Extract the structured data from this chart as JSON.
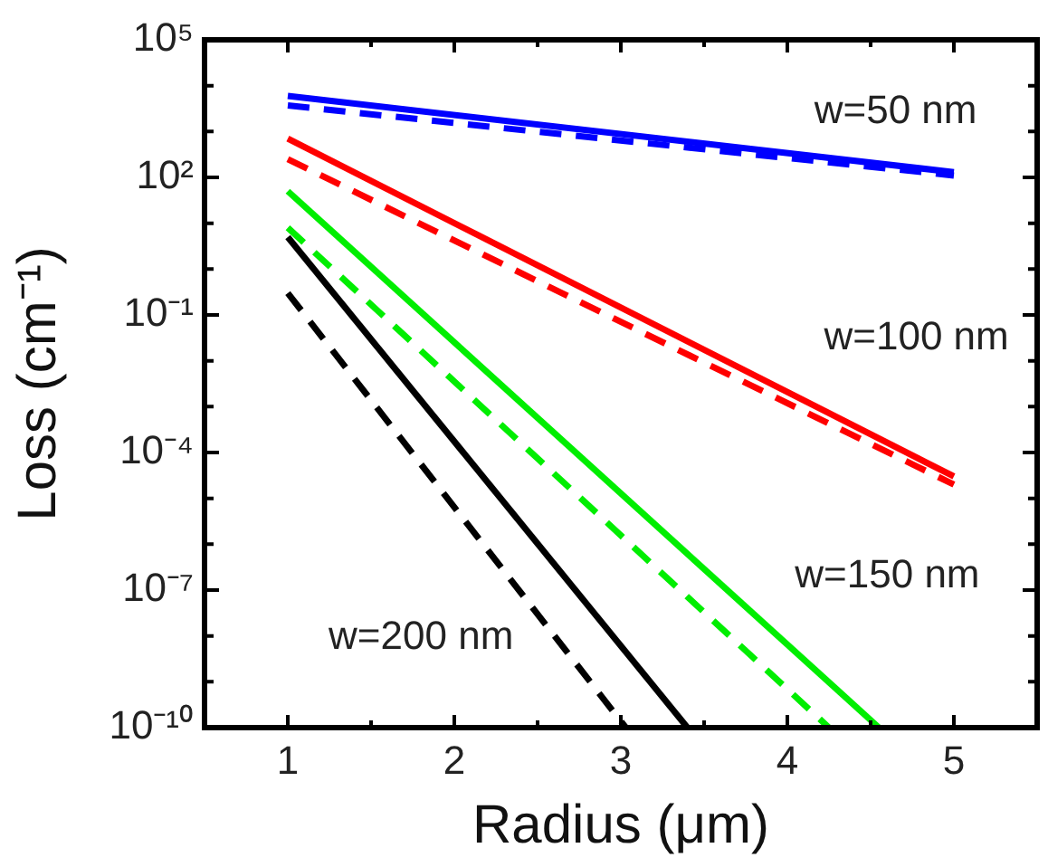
{
  "chart_data": {
    "type": "line",
    "xlabel": "Radius (μm)",
    "ylabel": "Loss (cm⁻¹)",
    "log": "y",
    "grid": false,
    "legend": false,
    "marker": "none",
    "xlim": [
      0.5,
      5.5
    ],
    "ylim": [
      1e-10,
      100000
    ],
    "xticks": [
      {
        "value": 0.5,
        "label": null
      },
      1,
      {
        "value": 1.5,
        "label": null
      },
      2,
      {
        "value": 2.5,
        "label": null
      },
      3,
      {
        "value": 3.5,
        "label": null
      },
      4,
      {
        "value": 4.5,
        "label": null
      },
      5,
      {
        "value": 5.5,
        "label": null
      }
    ],
    "yticks": [
      {
        "value": 1e-10,
        "label": "10⁻¹⁰"
      },
      {
        "value": 1e-09,
        "label": null
      },
      {
        "value": 1e-08,
        "label": null
      },
      {
        "value": 1e-07,
        "label": "10⁻⁷"
      },
      {
        "value": 1e-06,
        "label": null
      },
      {
        "value": 1e-05,
        "label": null
      },
      {
        "value": 0.0001,
        "label": "10⁻⁴"
      },
      {
        "value": 0.001,
        "label": null
      },
      {
        "value": 0.01,
        "label": null
      },
      {
        "value": 0.1,
        "label": "10⁻¹"
      },
      {
        "value": 1,
        "label": null
      },
      {
        "value": 10,
        "label": null
      },
      {
        "value": 100,
        "label": "10²"
      },
      {
        "value": 1000,
        "label": null
      },
      {
        "value": 10000,
        "label": null
      },
      {
        "value": 100000,
        "label": "10⁵"
      }
    ],
    "series": [
      {
        "color": "#0000ff",
        "line_style": "solid",
        "x": [
          1,
          5
        ],
        "values": [
          6000,
          130
        ]
      },
      {
        "color": "#0000ff",
        "line_style": "dashed",
        "x": [
          1,
          5
        ],
        "values": [
          3700,
          110
        ]
      },
      {
        "color": "#ff0000",
        "line_style": "solid",
        "x": [
          1,
          5
        ],
        "values": [
          700,
          3e-05
        ]
      },
      {
        "color": "#ff0000",
        "line_style": "dashed",
        "x": [
          1,
          5
        ],
        "values": [
          250,
          2e-05
        ]
      },
      {
        "color": "#00ee00",
        "line_style": "solid",
        "x": [
          1,
          4.55
        ],
        "values": [
          50,
          1e-10
        ]
      },
      {
        "color": "#00ee00",
        "line_style": "dashed",
        "x": [
          1,
          4.25
        ],
        "values": [
          8,
          1e-10
        ]
      },
      {
        "color": "#000000",
        "line_style": "solid",
        "x": [
          1,
          3.4
        ],
        "values": [
          5,
          1e-10
        ]
      },
      {
        "color": "#000000",
        "line_style": "dashed",
        "x": [
          1,
          3.03
        ],
        "values": [
          0.3,
          1e-10
        ]
      }
    ],
    "annotations": [
      "w=50 nm",
      "w=100 nm",
      "w=150 nm",
      "w=200 nm"
    ]
  }
}
